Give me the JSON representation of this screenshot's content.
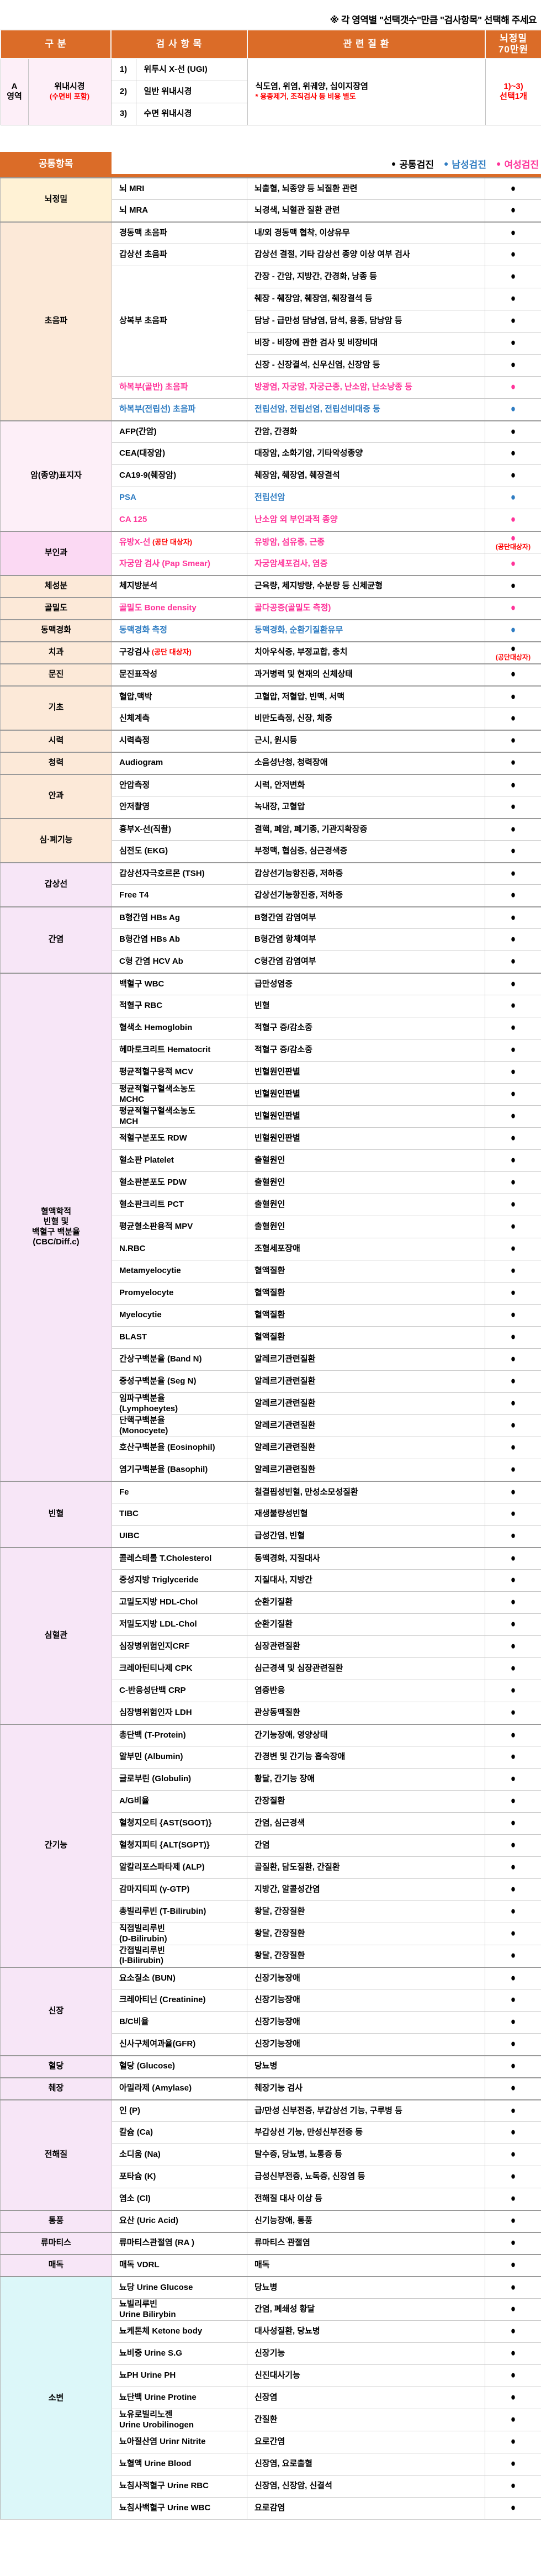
{
  "page": {
    "note": "※ 각 영역별 \"선택갯수\"만큼 \"검사항목\" 선택해 주세요"
  },
  "colors": {
    "header_orange": "#DB6C28",
    "red": "#FF0000",
    "male_blue": "#2E7CC2",
    "female_pink": "#FF3399",
    "common_black": "#000000"
  },
  "top_table": {
    "headers": {
      "gubun": "구 분",
      "item": "검 사 항 목",
      "disease": "관 련 질 환",
      "price": "뇌정밀\n70만원"
    },
    "area_label": "A\n영역",
    "category": "위내시경",
    "category_sub": "(수면비 포함)",
    "rows": [
      {
        "no": "1)",
        "name": "위투시 X-선 (UGI)"
      },
      {
        "no": "2)",
        "name": "일반 위내시경"
      },
      {
        "no": "3)",
        "name": "수면 위내시경"
      }
    ],
    "disease": "식도염, 위염, 위궤양, 십이지장염",
    "disease_note": "* 용종제거, 조직검사 등 비용 별도",
    "select": "1)~3)\n선택1개"
  },
  "legend": {
    "title": "공통항목",
    "items": [
      {
        "label": "공통검진",
        "color": "#000000"
      },
      {
        "label": "남성검진",
        "color": "#2E7CC2"
      },
      {
        "label": "여성검진",
        "color": "#FF3399"
      }
    ]
  },
  "sections": [
    {
      "label": "뇌정밀",
      "bg": "cream",
      "rows": [
        {
          "item": "뇌 MRI",
          "disease": "뇌출혈, 뇌종양 등 뇌질환 관련",
          "dot": "k"
        },
        {
          "item": "뇌 MRA",
          "disease": "뇌경색, 뇌혈관 질환 관련",
          "dot": "k"
        }
      ]
    },
    {
      "label": "초음파",
      "bg": "peach",
      "rows": [
        {
          "item": "경동맥 초음파",
          "disease": "내/외 경동맥 협착, 이상유무",
          "dot": "k"
        },
        {
          "item": "갑상선 초음파",
          "disease": "갑상선 결절, 기타 갑상선 종양 이상 여부 검사",
          "dot": "k"
        },
        {
          "item": "상복부 초음파",
          "span": 5,
          "disease": "간장 - 간암, 지방간, 간경화, 낭종 등",
          "dot": "k"
        },
        {
          "cont": true,
          "disease": "췌장 - 췌장암, 췌장염, 췌장결석 등",
          "dot": "k"
        },
        {
          "cont": true,
          "disease": "담낭 - 급만성 담낭염, 담석, 용종, 담낭암 등",
          "dot": "k"
        },
        {
          "cont": true,
          "disease": "비장 - 비장에 관한 검사 및 비장비대",
          "dot": "k"
        },
        {
          "cont": true,
          "disease": "신장 - 신장결석, 신우신염, 신장암 등",
          "dot": "k"
        },
        {
          "item": "하복부(골반) 초음파",
          "ic": "f",
          "disease": "방광염, 자궁암, 자궁근종, 난소암, 난소낭종 등",
          "dc": "f",
          "dot": "f"
        },
        {
          "item": "하복부(전립선) 초음파",
          "ic": "m",
          "disease": "전립선암, 전립선염, 전립선비대증 등",
          "dc": "m",
          "dot": "m"
        }
      ]
    },
    {
      "label": "암(종양)표지자",
      "bg": "pinkl",
      "rows": [
        {
          "item": "AFP(간암)",
          "disease": "간암, 간경화",
          "dot": "k"
        },
        {
          "item": "CEA(대장암)",
          "disease": "대장암, 소화기암, 기타악성종양",
          "dot": "k"
        },
        {
          "item": "CA19-9(췌장암)",
          "disease": "췌장암, 췌장염, 췌장결석",
          "dot": "k"
        },
        {
          "item": "PSA",
          "ic": "m",
          "disease": "전립선암",
          "dc": "m",
          "dot": "m"
        },
        {
          "item": "CA 125",
          "ic": "f",
          "disease": "난소암 외 부인과적 종양",
          "dc": "f",
          "dot": "f"
        }
      ]
    },
    {
      "label": "부인과",
      "bg": "pink",
      "rows": [
        {
          "item": "유방X-선",
          "ic": "f",
          "suffix": "(공단 대상자)",
          "disease": "유방암, 섬유종, 근종",
          "dc": "f",
          "dot": "f",
          "dot_note": "(공단대상자)"
        },
        {
          "item": "자궁암 검사 (Pap Smear)",
          "ic": "f",
          "disease": "자궁암세포검사, 염증",
          "dc": "f",
          "dot": "f"
        }
      ]
    },
    {
      "label": "체성분",
      "bg": "peach",
      "rows": [
        {
          "item": "체지방분석",
          "disease": "근육량, 체지방량, 수분량 등 신체균형",
          "dot": "k"
        }
      ]
    },
    {
      "label": "골밀도",
      "bg": "peach",
      "rows": [
        {
          "item": "골밀도 Bone density",
          "ic": "f",
          "disease": "골다공증(골밀도 측정)",
          "dc": "f",
          "dot": "f"
        }
      ]
    },
    {
      "label": "동맥경화",
      "bg": "peach",
      "rows": [
        {
          "item": "동맥경화 측정",
          "ic": "m",
          "disease": "동맥경화, 순환기질환유무",
          "dc": "m",
          "dot": "m"
        }
      ]
    },
    {
      "label": "치과",
      "bg": "peach",
      "rows": [
        {
          "item": "구강검사",
          "suffix": "(공단 대상자)",
          "disease": "치아우식증, 부정교합, 충치",
          "dot": "k",
          "dot_note": "(공단대상자)"
        }
      ]
    },
    {
      "label": "문진",
      "bg": "peach",
      "rows": [
        {
          "item": "문진표작성",
          "disease": "과거병력 및 현재의 신체상태",
          "dot": "k"
        }
      ]
    },
    {
      "label": "기초",
      "bg": "peach",
      "rows": [
        {
          "item": "혈압,맥박",
          "disease": "고혈압, 저혈압, 빈맥, 서맥",
          "dot": "k"
        },
        {
          "item": "신체계측",
          "disease": "비만도측정, 신장, 체중",
          "dot": "k"
        }
      ]
    },
    {
      "label": "시력",
      "bg": "peach",
      "rows": [
        {
          "item": "시력측정",
          "disease": "근시, 원시등",
          "dot": "k"
        }
      ]
    },
    {
      "label": "청력",
      "bg": "peach",
      "rows": [
        {
          "item": "Audiogram",
          "disease": "소음성난청, 청력장애",
          "dot": "k"
        }
      ]
    },
    {
      "label": "안과",
      "bg": "peach",
      "rows": [
        {
          "item": "안압측정",
          "disease": "시력, 안저변화",
          "dot": "k"
        },
        {
          "item": "안저촬영",
          "disease": "녹내장, 고혈압",
          "dot": "k"
        }
      ]
    },
    {
      "label": "심·폐기능",
      "bg": "peach",
      "rows": [
        {
          "item": "흉부X-선(직촬)",
          "disease": "결핵, 폐암, 폐기종, 기관지확장증",
          "dot": "k"
        },
        {
          "item": "심전도 (EKG)",
          "disease": "부정맥, 협심증, 심근경색증",
          "dot": "k"
        }
      ]
    },
    {
      "label": "갑상선",
      "bg": "lav",
      "rows": [
        {
          "item": "갑상선자극호르몬 (TSH)",
          "disease": "갑상선기능항진증, 저하증",
          "dot": "k"
        },
        {
          "item": "Free T4",
          "disease": "갑상선기능항진증, 저하증",
          "dot": "k"
        }
      ]
    },
    {
      "label": "간염",
      "bg": "lav",
      "rows": [
        {
          "item": "B형간염 HBs Ag",
          "disease": "B형간염 감염여부",
          "dot": "k"
        },
        {
          "item": "B형간염 HBs Ab",
          "disease": "B형간염 항체여부",
          "dot": "k"
        },
        {
          "item": "C형 간염 HCV Ab",
          "disease": "C형간염 감염여부",
          "dot": "k"
        }
      ]
    },
    {
      "label": "혈액학적\n빈혈 및\n백혈구 백분율\n(CBC/Diff.c)",
      "bg": "lav",
      "rows": [
        {
          "item": "백혈구 WBC",
          "disease": "급만성염증",
          "dot": "k"
        },
        {
          "item": "적혈구 RBC",
          "disease": "빈혈",
          "dot": "k"
        },
        {
          "item": "혈색소 Hemoglobin",
          "disease": "적혈구 증/감소중",
          "dot": "k"
        },
        {
          "item": "헤마토크리트 Hematocrit",
          "disease": "적혈구 증/감소중",
          "dot": "k"
        },
        {
          "item": "평균적혈구용적 MCV",
          "disease": "빈혈원인판별",
          "dot": "k"
        },
        {
          "item": "평균적혈구혈색소농도\nMCHC",
          "disease": "빈혈원인판별",
          "dot": "k"
        },
        {
          "item": "평균적혈구혈색소농도\nMCH",
          "disease": "빈혈원인판별",
          "dot": "k"
        },
        {
          "item": "적혈구분포도 RDW",
          "disease": "빈혈원인판별",
          "dot": "k"
        },
        {
          "item": "혈소판 Platelet",
          "disease": "출혈원인",
          "dot": "k"
        },
        {
          "item": "혈소판분포도 PDW",
          "disease": "출혈원인",
          "dot": "k"
        },
        {
          "item": "혈소판크리트 PCT",
          "disease": "출혈원인",
          "dot": "k"
        },
        {
          "item": "평균혈소판용적 MPV",
          "disease": "출혈원인",
          "dot": "k"
        },
        {
          "item": "N.RBC",
          "disease": "조혈세포장애",
          "dot": "k"
        },
        {
          "item": "Metamyelocytie",
          "disease": "혈액질환",
          "dot": "k"
        },
        {
          "item": "Promyelocyte",
          "disease": "혈액질환",
          "dot": "k"
        },
        {
          "item": "Myelocytie",
          "disease": "혈액질환",
          "dot": "k"
        },
        {
          "item": "BLAST",
          "disease": "혈액질환",
          "dot": "k"
        },
        {
          "item": "간상구백분율 (Band N)",
          "disease": "알레르기관련질환",
          "dot": "k"
        },
        {
          "item": "중성구백분율 (Seg N)",
          "disease": "알레르기관련질환",
          "dot": "k"
        },
        {
          "item": "임파구백분율\n(Lymphoeytes)",
          "disease": "알레르기관련질환",
          "dot": "k"
        },
        {
          "item": "단핵구백분율\n(Monocyete)",
          "disease": "알레르기관련질환",
          "dot": "k"
        },
        {
          "item": "호산구백분율 (Eosinophil)",
          "disease": "알레르기관련질환",
          "dot": "k"
        },
        {
          "item": "염기구백분율 (Basophil)",
          "disease": "알레르기관련질환",
          "dot": "k"
        }
      ]
    },
    {
      "label": "빈혈",
      "bg": "lav",
      "rows": [
        {
          "item": "Fe",
          "disease": "철결핍성빈혈, 만성소모성질환",
          "dot": "k"
        },
        {
          "item": "TIBC",
          "disease": "재생불량성빈혈",
          "dot": "k"
        },
        {
          "item": "UIBC",
          "disease": "급성간염, 빈혈",
          "dot": "k"
        }
      ]
    },
    {
      "label": "심혈관",
      "bg": "lav",
      "rows": [
        {
          "item": "콜레스테롤 T.Cholesterol",
          "disease": "동맥경화, 지질대사",
          "dot": "k"
        },
        {
          "item": "중성지방 Triglyceride",
          "disease": "지질대사, 지방간",
          "dot": "k"
        },
        {
          "item": "고밀도지방 HDL-Chol",
          "disease": "순환기질환",
          "dot": "k"
        },
        {
          "item": "저밀도지방 LDL-Chol",
          "disease": "순환기질환",
          "dot": "k"
        },
        {
          "item": "심장병위험인지CRF",
          "disease": "심장관련질환",
          "dot": "k"
        },
        {
          "item": "크레아틴티나제 CPK",
          "disease": "심근경색 및 심장관련질환",
          "dot": "k"
        },
        {
          "item": "C-반응성단백 CRP",
          "disease": "염증반응",
          "dot": "k"
        },
        {
          "item": "심장병위험인자 LDH",
          "disease": "관상동맥질환",
          "dot": "k"
        }
      ]
    },
    {
      "label": "간기능",
      "bg": "lav",
      "rows": [
        {
          "item": "총단백 (T-Protein)",
          "disease": "간기능장애, 영양상태",
          "dot": "k"
        },
        {
          "item": "알부민 (Albumin)",
          "disease": "간경변 및 간기능 흡숙장애",
          "dot": "k"
        },
        {
          "item": "글로부린 (Globulin)",
          "disease": "황달, 간기능 장애",
          "dot": "k"
        },
        {
          "item": "A/G비율",
          "disease": "간장질환",
          "dot": "k"
        },
        {
          "item": "혈청지오티 {AST(SGOT)}",
          "disease": "간염, 심근경색",
          "dot": "k"
        },
        {
          "item": "혈청지피티 {ALT(SGPT)}",
          "disease": "간염",
          "dot": "k"
        },
        {
          "item": "알칼리포스파타제 (ALP)",
          "disease": "골질환, 담도질환, 간질환",
          "dot": "k"
        },
        {
          "item": "감마지티피 (γ-GTP)",
          "disease": "지방간, 알콜성간염",
          "dot": "k"
        },
        {
          "item": "총빌리루빈 (T-Bilirubin)",
          "disease": "황달, 간장질환",
          "dot": "k"
        },
        {
          "item": "직접빌리루빈\n(D-Bilirubin)",
          "disease": "황달, 간장질환",
          "dot": "k"
        },
        {
          "item": "간접빌리루빈\n(I-Bilirubin)",
          "disease": "황달, 간장질환",
          "dot": "k"
        }
      ]
    },
    {
      "label": "신장",
      "bg": "lav",
      "rows": [
        {
          "item": "요소질소 (BUN)",
          "disease": "신장기능장애",
          "dot": "k"
        },
        {
          "item": "크레아티닌 (Creatinine)",
          "disease": "신장기능장애",
          "dot": "k"
        },
        {
          "item": "B/C비율",
          "disease": "신장기능장애",
          "dot": "k"
        },
        {
          "item": "신사구체여과율(GFR)",
          "disease": "신장기능장애",
          "dot": "k"
        }
      ]
    },
    {
      "label": "혈당",
      "bg": "lav",
      "rows": [
        {
          "item": "혈당 (Glucose)",
          "disease": "당뇨병",
          "dot": "k"
        }
      ]
    },
    {
      "label": "췌장",
      "bg": "lav",
      "rows": [
        {
          "item": "아밀라제 (Amylase)",
          "disease": "췌장기능 검사",
          "dot": "k"
        }
      ]
    },
    {
      "label": "전해질",
      "bg": "lav",
      "rows": [
        {
          "item": "인 (P)",
          "disease": "급/만성 신부전증, 부갑상선 기능, 구루병 등",
          "dot": "k"
        },
        {
          "item": "칼슘 (Ca)",
          "disease": "부갑상선 기능, 만성신부전증 등",
          "dot": "k"
        },
        {
          "item": "소디움 (Na)",
          "disease": "탈수증, 당뇨병, 뇨통증 등",
          "dot": "k"
        },
        {
          "item": "포타슘 (K)",
          "disease": "급성신부전증, 뇨독증, 신장염 등",
          "dot": "k"
        },
        {
          "item": "염소 (Cl)",
          "disease": "전해질 대사 이상 등",
          "dot": "k"
        }
      ]
    },
    {
      "label": "통풍",
      "bg": "lav",
      "rows": [
        {
          "item": "요산 (Uric Acid)",
          "disease": "신기능장애, 통풍",
          "dot": "k"
        }
      ]
    },
    {
      "label": "류마티스",
      "bg": "lav",
      "rows": [
        {
          "item": "류마티스관절염 (RA )",
          "disease": "류마티스 관절염",
          "dot": "k"
        }
      ]
    },
    {
      "label": "매독",
      "bg": "lav",
      "rows": [
        {
          "item": "매독  VDRL",
          "disease": "매독",
          "dot": "k"
        }
      ]
    },
    {
      "label": "소변",
      "bg": "cyan",
      "rows": [
        {
          "item": "뇨당 Urine Glucose",
          "disease": "당뇨병",
          "dot": "k"
        },
        {
          "item": "뇨빌리루빈\nUrine Bilirybin",
          "disease": "간염, 폐쇄성 황달",
          "dot": "k"
        },
        {
          "item": "뇨케톤체 Ketone body",
          "disease": "대사성질환, 당뇨병",
          "dot": "k"
        },
        {
          "item": "뇨비중 Urine S.G",
          "disease": "신장기능",
          "dot": "k"
        },
        {
          "item": "뇨PH Urine PH",
          "disease": "신진대사기능",
          "dot": "k"
        },
        {
          "item": "뇨단백 Urine Protine",
          "disease": "신장염",
          "dot": "k"
        },
        {
          "item": "뇨유로빌리노젠\nUrine Urobilinogen",
          "disease": "간질환",
          "dot": "k"
        },
        {
          "item": "뇨아질산염 Urinr Nitrite",
          "disease": "요로간염",
          "dot": "k"
        },
        {
          "item": "뇨혈액 Urine Blood",
          "disease": "신장염, 요로출혈",
          "dot": "k"
        },
        {
          "item": "뇨침사적혈구 Urine RBC",
          "disease": "신장염, 신장암, 신결석",
          "dot": "k"
        },
        {
          "item": "뇨침사백혈구 Urine WBC",
          "disease": "요로감염",
          "dot": "k"
        }
      ]
    }
  ]
}
